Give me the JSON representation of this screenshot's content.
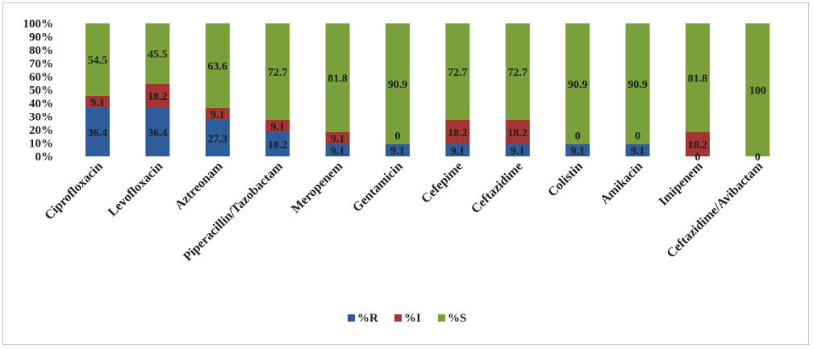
{
  "chart_data": {
    "type": "bar",
    "stacked": true,
    "percent_stacked": true,
    "categories": [
      "Ciprofloxacin",
      "Levofloxacin",
      "Aztreonam",
      "Piperacillin/Tazobactam",
      "Meropenem",
      "Gentamicin",
      "Cefepime",
      "Ceftazidime",
      "Colistin",
      "Amikacin",
      "Imipenem",
      "Ceftazidime/Avibactam"
    ],
    "series": [
      {
        "name": "%R",
        "color": "#2e5d9c",
        "values": [
          36.4,
          36.4,
          27.3,
          18.2,
          9.1,
          9.1,
          9.1,
          9.1,
          9.1,
          9.1,
          0,
          0
        ]
      },
      {
        "name": "%I",
        "color": "#a33533",
        "values": [
          9.1,
          18.2,
          9.1,
          9.1,
          9.1,
          0,
          18.2,
          18.2,
          0,
          0,
          18.2,
          0
        ]
      },
      {
        "name": "%S",
        "color": "#79a03b",
        "values": [
          54.5,
          45.5,
          63.6,
          72.7,
          81.8,
          90.9,
          72.7,
          72.7,
          90.9,
          90.9,
          81.8,
          100
        ]
      }
    ],
    "data_labels": [
      [
        "36.4",
        "36.4",
        "27.3",
        "18.2",
        "9.1",
        "9.1",
        "9.1",
        "9.1",
        "9.1",
        "9.1",
        "0",
        "0"
      ],
      [
        "9.1",
        "18.2",
        "9.1",
        "9.1",
        "9.1",
        "0",
        "18.2",
        "18.2",
        "0",
        "0",
        "18.2",
        ""
      ],
      [
        "54.5",
        "45.5",
        "63.6",
        "72.7",
        "81.8",
        "90.9",
        "72.7",
        "72.7",
        "90.9",
        "90.9",
        "81.8",
        "100"
      ]
    ],
    "y_ticks": [
      "0%",
      "10%",
      "20%",
      "30%",
      "40%",
      "50%",
      "60%",
      "70%",
      "80%",
      "90%",
      "100%"
    ],
    "ylim": [
      0,
      100
    ],
    "grid": false,
    "legend_position": "bottom"
  }
}
